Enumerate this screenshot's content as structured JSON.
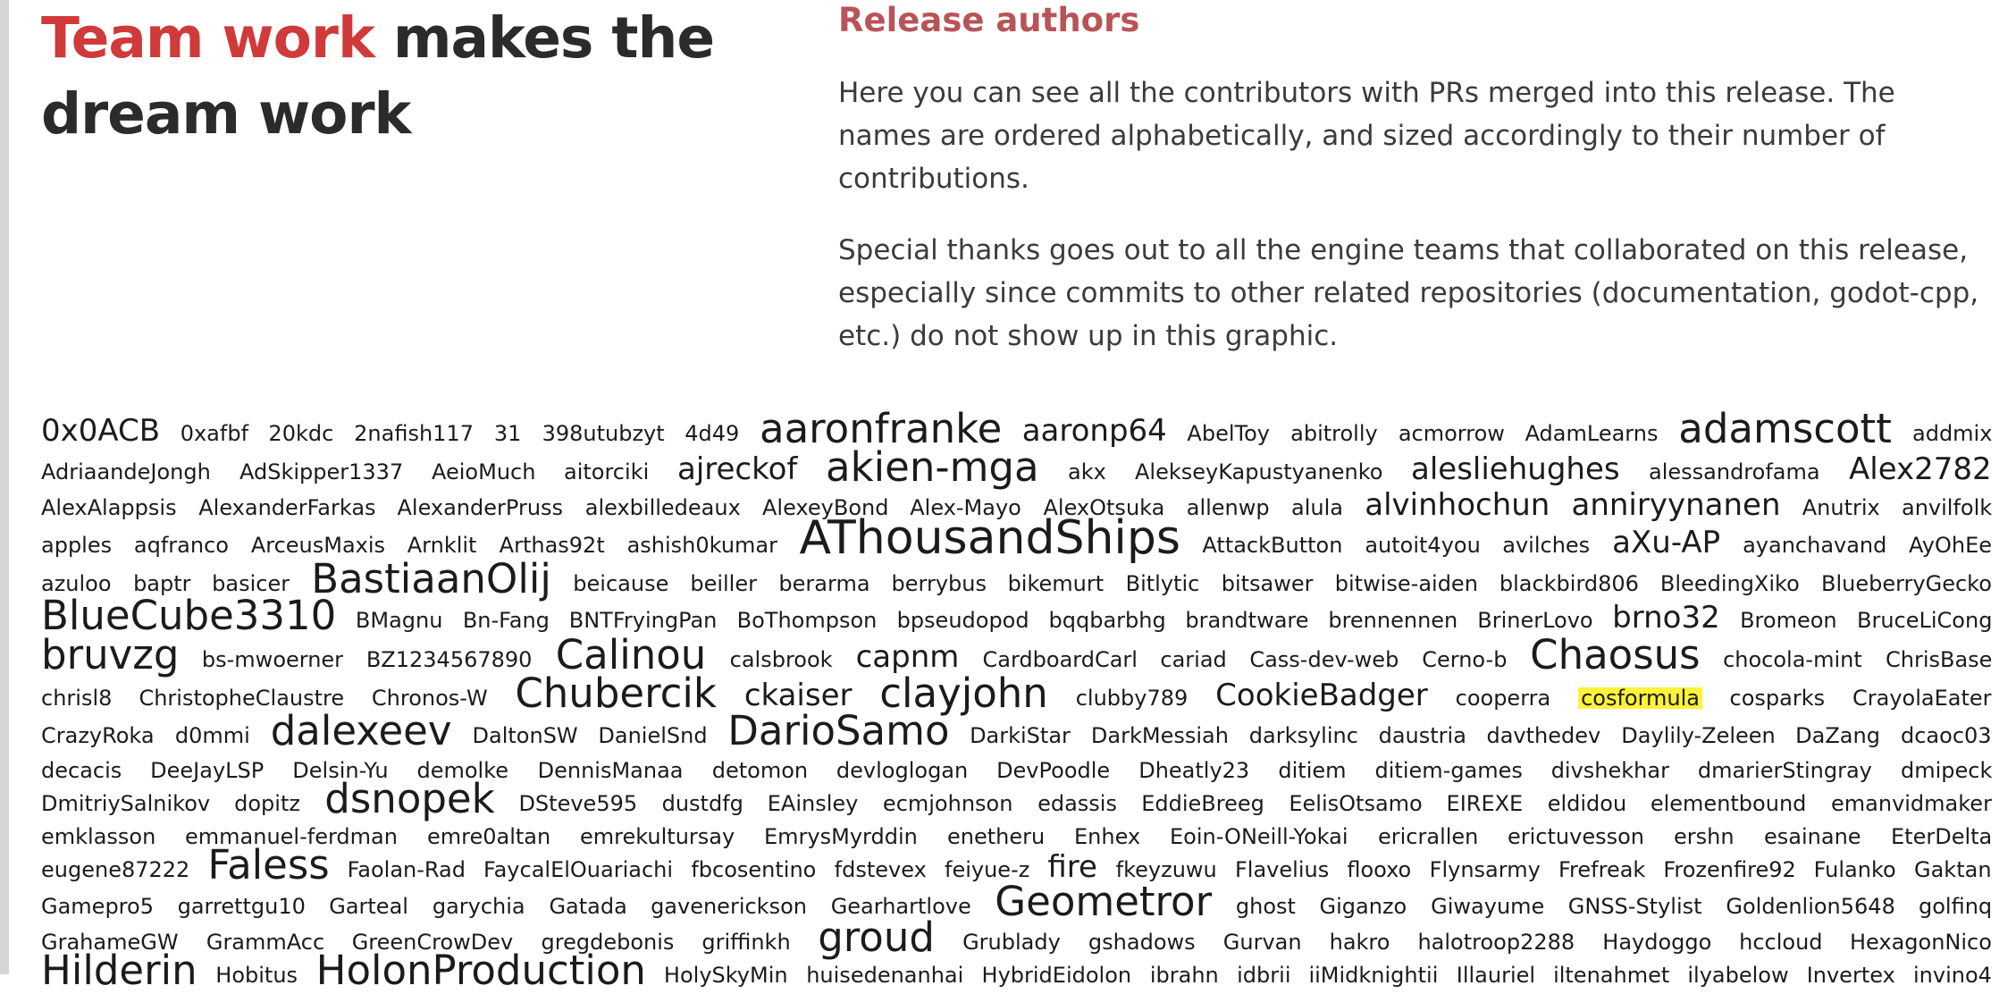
{
  "colors": {
    "accent": "#d03a3a",
    "section_title": "#b85458",
    "text": "#333333",
    "highlight": "#fff23a"
  },
  "headline": {
    "accent": "Team work",
    "rest": " makes the dream work"
  },
  "section_title": "Release authors",
  "intro": "Here you can see all the contributors with PRs merged into this release. The names are ordered alphabetically, and sized accordingly to their number of contributions.",
  "thanks": "Special thanks goes out to all the engine teams that collaborated on this release, especially since commits to other related repositories (documentation, godot-cpp, etc.) do not show up in this graphic.",
  "highlighted": "cosformula",
  "author_rows": [
    [
      [
        "0x0ACB",
        2
      ],
      [
        "0xafbf",
        1
      ],
      [
        "20kdc",
        1
      ],
      [
        "2nafish117",
        1
      ],
      [
        "31",
        1
      ],
      [
        "398utubzyt",
        1
      ],
      [
        "4d49",
        1
      ],
      [
        "aaronfranke",
        3
      ],
      [
        "aaronp64",
        2
      ],
      [
        "AbelToy",
        1
      ],
      [
        "abitrolly",
        1
      ],
      [
        "acmorrow",
        1
      ],
      [
        "AdamLearns",
        1
      ],
      [
        "adamscott",
        3
      ],
      [
        "addmix",
        1
      ]
    ],
    [
      [
        "AdriaandeJongh",
        1
      ],
      [
        "AdSkipper1337",
        1
      ],
      [
        "AeioMuch",
        1
      ],
      [
        "aitorciki",
        1
      ],
      [
        "ajreckof",
        2
      ],
      [
        "akien-mga",
        3
      ],
      [
        "akx",
        1
      ],
      [
        "AlekseyKapustyanenko",
        1
      ],
      [
        "alesliehughes",
        2
      ],
      [
        "alessandrofama",
        1
      ],
      [
        "Alex2782",
        2
      ]
    ],
    [
      [
        "AlexAlappsis",
        1
      ],
      [
        "AlexanderFarkas",
        1
      ],
      [
        "AlexanderPruss",
        1
      ],
      [
        "alexbilledeaux",
        1
      ],
      [
        "AlexeyBond",
        1
      ],
      [
        "Alex-Mayo",
        1
      ],
      [
        "AlexOtsuka",
        1
      ],
      [
        "allenwp",
        1
      ],
      [
        "alula",
        1
      ],
      [
        "alvinhochun",
        2
      ],
      [
        "anniryynanen",
        2
      ],
      [
        "Anutrix",
        1
      ],
      [
        "anvilfolk",
        1
      ]
    ],
    [
      [
        "apples",
        1
      ],
      [
        "aqfranco",
        1
      ],
      [
        "ArceusMaxis",
        1
      ],
      [
        "Arnklit",
        1
      ],
      [
        "Arthas92t",
        1
      ],
      [
        "ashish0kumar",
        1
      ],
      [
        "AThousandShips",
        4
      ],
      [
        "AttackButton",
        1
      ],
      [
        "autoit4you",
        1
      ],
      [
        "avilches",
        1
      ],
      [
        "aXu-AP",
        2
      ],
      [
        "ayanchavand",
        1
      ],
      [
        "AyOhEe",
        1
      ]
    ],
    [
      [
        "azuloo",
        1
      ],
      [
        "baptr",
        1
      ],
      [
        "basicer",
        1
      ],
      [
        "BastiaanOlij",
        3
      ],
      [
        "beicause",
        1
      ],
      [
        "beiller",
        1
      ],
      [
        "berarma",
        1
      ],
      [
        "berrybus",
        1
      ],
      [
        "bikemurt",
        1
      ],
      [
        "Bitlytic",
        1
      ],
      [
        "bitsawer",
        1
      ],
      [
        "bitwise-aiden",
        1
      ],
      [
        "blackbird806",
        1
      ],
      [
        "BleedingXiko",
        1
      ],
      [
        "BlueberryGecko",
        1
      ]
    ],
    [
      [
        "BlueCube3310",
        3
      ],
      [
        "BMagnu",
        1
      ],
      [
        "Bn-Fang",
        1
      ],
      [
        "BNTFryingPan",
        1
      ],
      [
        "BoThompson",
        1
      ],
      [
        "bpseudopod",
        1
      ],
      [
        "bqqbarbhg",
        1
      ],
      [
        "brandtware",
        1
      ],
      [
        "brennennen",
        1
      ],
      [
        "BrinerLovo",
        1
      ],
      [
        "brno32",
        2
      ],
      [
        "Bromeon",
        1
      ],
      [
        "BruceLiCong",
        1
      ]
    ],
    [
      [
        "bruvzg",
        3
      ],
      [
        "bs-mwoerner",
        1
      ],
      [
        "BZ1234567890",
        1
      ],
      [
        "Calinou",
        3
      ],
      [
        "calsbrook",
        1
      ],
      [
        "capnm",
        2
      ],
      [
        "CardboardCarl",
        1
      ],
      [
        "cariad",
        1
      ],
      [
        "Cass-dev-web",
        1
      ],
      [
        "Cerno-b",
        1
      ],
      [
        "Chaosus",
        3
      ],
      [
        "chocola-mint",
        1
      ],
      [
        "ChrisBase",
        1
      ]
    ],
    [
      [
        "chrisl8",
        1
      ],
      [
        "ChristopheClaustre",
        1
      ],
      [
        "Chronos-W",
        1
      ],
      [
        "Chubercik",
        3
      ],
      [
        "ckaiser",
        2
      ],
      [
        "clayjohn",
        3
      ],
      [
        "clubby789",
        1
      ],
      [
        "CookieBadger",
        2
      ],
      [
        "cooperra",
        1
      ],
      [
        "cosformula",
        1
      ],
      [
        "cosparks",
        1
      ],
      [
        "CrayolaEater",
        1
      ]
    ],
    [
      [
        "CrazyRoka",
        1
      ],
      [
        "d0mmi",
        1
      ],
      [
        "dalexeev",
        3
      ],
      [
        "DaltonSW",
        1
      ],
      [
        "DanielSnd",
        1
      ],
      [
        "DarioSamo",
        3
      ],
      [
        "DarkiStar",
        1
      ],
      [
        "DarkMessiah",
        1
      ],
      [
        "darksylinc",
        1
      ],
      [
        "daustria",
        1
      ],
      [
        "davthedev",
        1
      ],
      [
        "Daylily-Zeleen",
        1
      ],
      [
        "DaZang",
        1
      ],
      [
        "dcaoc03",
        1
      ]
    ],
    [
      [
        "decacis",
        1
      ],
      [
        "DeeJayLSP",
        1
      ],
      [
        "Delsin-Yu",
        1
      ],
      [
        "demolke",
        1
      ],
      [
        "DennisManaa",
        1
      ],
      [
        "detomon",
        1
      ],
      [
        "devloglogan",
        1
      ],
      [
        "DevPoodle",
        1
      ],
      [
        "Dheatly23",
        1
      ],
      [
        "ditiem",
        1
      ],
      [
        "ditiem-games",
        1
      ],
      [
        "divshekhar",
        1
      ],
      [
        "dmarierStingray",
        1
      ],
      [
        "dmipeck",
        1
      ]
    ],
    [
      [
        "DmitriySalnikov",
        1
      ],
      [
        "dopitz",
        1
      ],
      [
        "dsnopek",
        3
      ],
      [
        "DSteve595",
        1
      ],
      [
        "dustdfg",
        1
      ],
      [
        "EAinsley",
        1
      ],
      [
        "ecmjohnson",
        1
      ],
      [
        "edassis",
        1
      ],
      [
        "EddieBreeg",
        1
      ],
      [
        "EelisOtsamo",
        1
      ],
      [
        "EIREXE",
        1
      ],
      [
        "eldidou",
        1
      ],
      [
        "elementbound",
        1
      ],
      [
        "emanvidmaker",
        1
      ]
    ],
    [
      [
        "emklasson",
        1
      ],
      [
        "emmanuel-ferdman",
        1
      ],
      [
        "emre0altan",
        1
      ],
      [
        "emrekultursay",
        1
      ],
      [
        "EmrysMyrddin",
        1
      ],
      [
        "enetheru",
        1
      ],
      [
        "Enhex",
        1
      ],
      [
        "Eoin-ONeill-Yokai",
        1
      ],
      [
        "ericrallen",
        1
      ],
      [
        "erictuvesson",
        1
      ],
      [
        "ershn",
        1
      ],
      [
        "esainane",
        1
      ],
      [
        "EterDelta",
        1
      ]
    ],
    [
      [
        "eugene87222",
        1
      ],
      [
        "Faless",
        3
      ],
      [
        "Faolan-Rad",
        1
      ],
      [
        "FaycalElOuariachi",
        1
      ],
      [
        "fbcosentino",
        1
      ],
      [
        "fdstevex",
        1
      ],
      [
        "feiyue-z",
        1
      ],
      [
        "fire",
        2
      ],
      [
        "fkeyzuwu",
        1
      ],
      [
        "Flavelius",
        1
      ],
      [
        "flooxo",
        1
      ],
      [
        "Flynsarmy",
        1
      ],
      [
        "Frefreak",
        1
      ],
      [
        "Frozenfire92",
        1
      ],
      [
        "Fulanko",
        1
      ],
      [
        "Gaktan",
        1
      ]
    ],
    [
      [
        "Gamepro5",
        1
      ],
      [
        "garrettgu10",
        1
      ],
      [
        "Garteal",
        1
      ],
      [
        "garychia",
        1
      ],
      [
        "Gatada",
        1
      ],
      [
        "gavenerickson",
        1
      ],
      [
        "Gearhartlove",
        1
      ],
      [
        "Geometror",
        3
      ],
      [
        "ghost",
        1
      ],
      [
        "Giganzo",
        1
      ],
      [
        "Giwayume",
        1
      ],
      [
        "GNSS-Stylist",
        1
      ],
      [
        "Goldenlion5648",
        1
      ],
      [
        "golfinq",
        1
      ]
    ],
    [
      [
        "GrahameGW",
        1
      ],
      [
        "GrammAcc",
        1
      ],
      [
        "GreenCrowDev",
        1
      ],
      [
        "gregdebonis",
        1
      ],
      [
        "griffinkh",
        1
      ],
      [
        "groud",
        3
      ],
      [
        "Grublady",
        1
      ],
      [
        "gshadows",
        1
      ],
      [
        "Gurvan",
        1
      ],
      [
        "hakro",
        1
      ],
      [
        "halotroop2288",
        1
      ],
      [
        "Haydoggo",
        1
      ],
      [
        "hccloud",
        1
      ],
      [
        "HexagonNico",
        1
      ]
    ],
    [
      [
        "Hilderin",
        3
      ],
      [
        "Hobitus",
        1
      ],
      [
        "HolonProduction",
        3
      ],
      [
        "HolySkyMin",
        1
      ],
      [
        "huisedenanhai",
        1
      ],
      [
        "HybridEidolon",
        1
      ],
      [
        "ibrahn",
        1
      ],
      [
        "idbrii",
        1
      ],
      [
        "iiMidknightii",
        1
      ],
      [
        "Illauriel",
        1
      ],
      [
        "iltenahmet",
        1
      ],
      [
        "ilyabelow",
        1
      ],
      [
        "Invertex",
        1
      ],
      [
        "invino4",
        1
      ]
    ]
  ]
}
